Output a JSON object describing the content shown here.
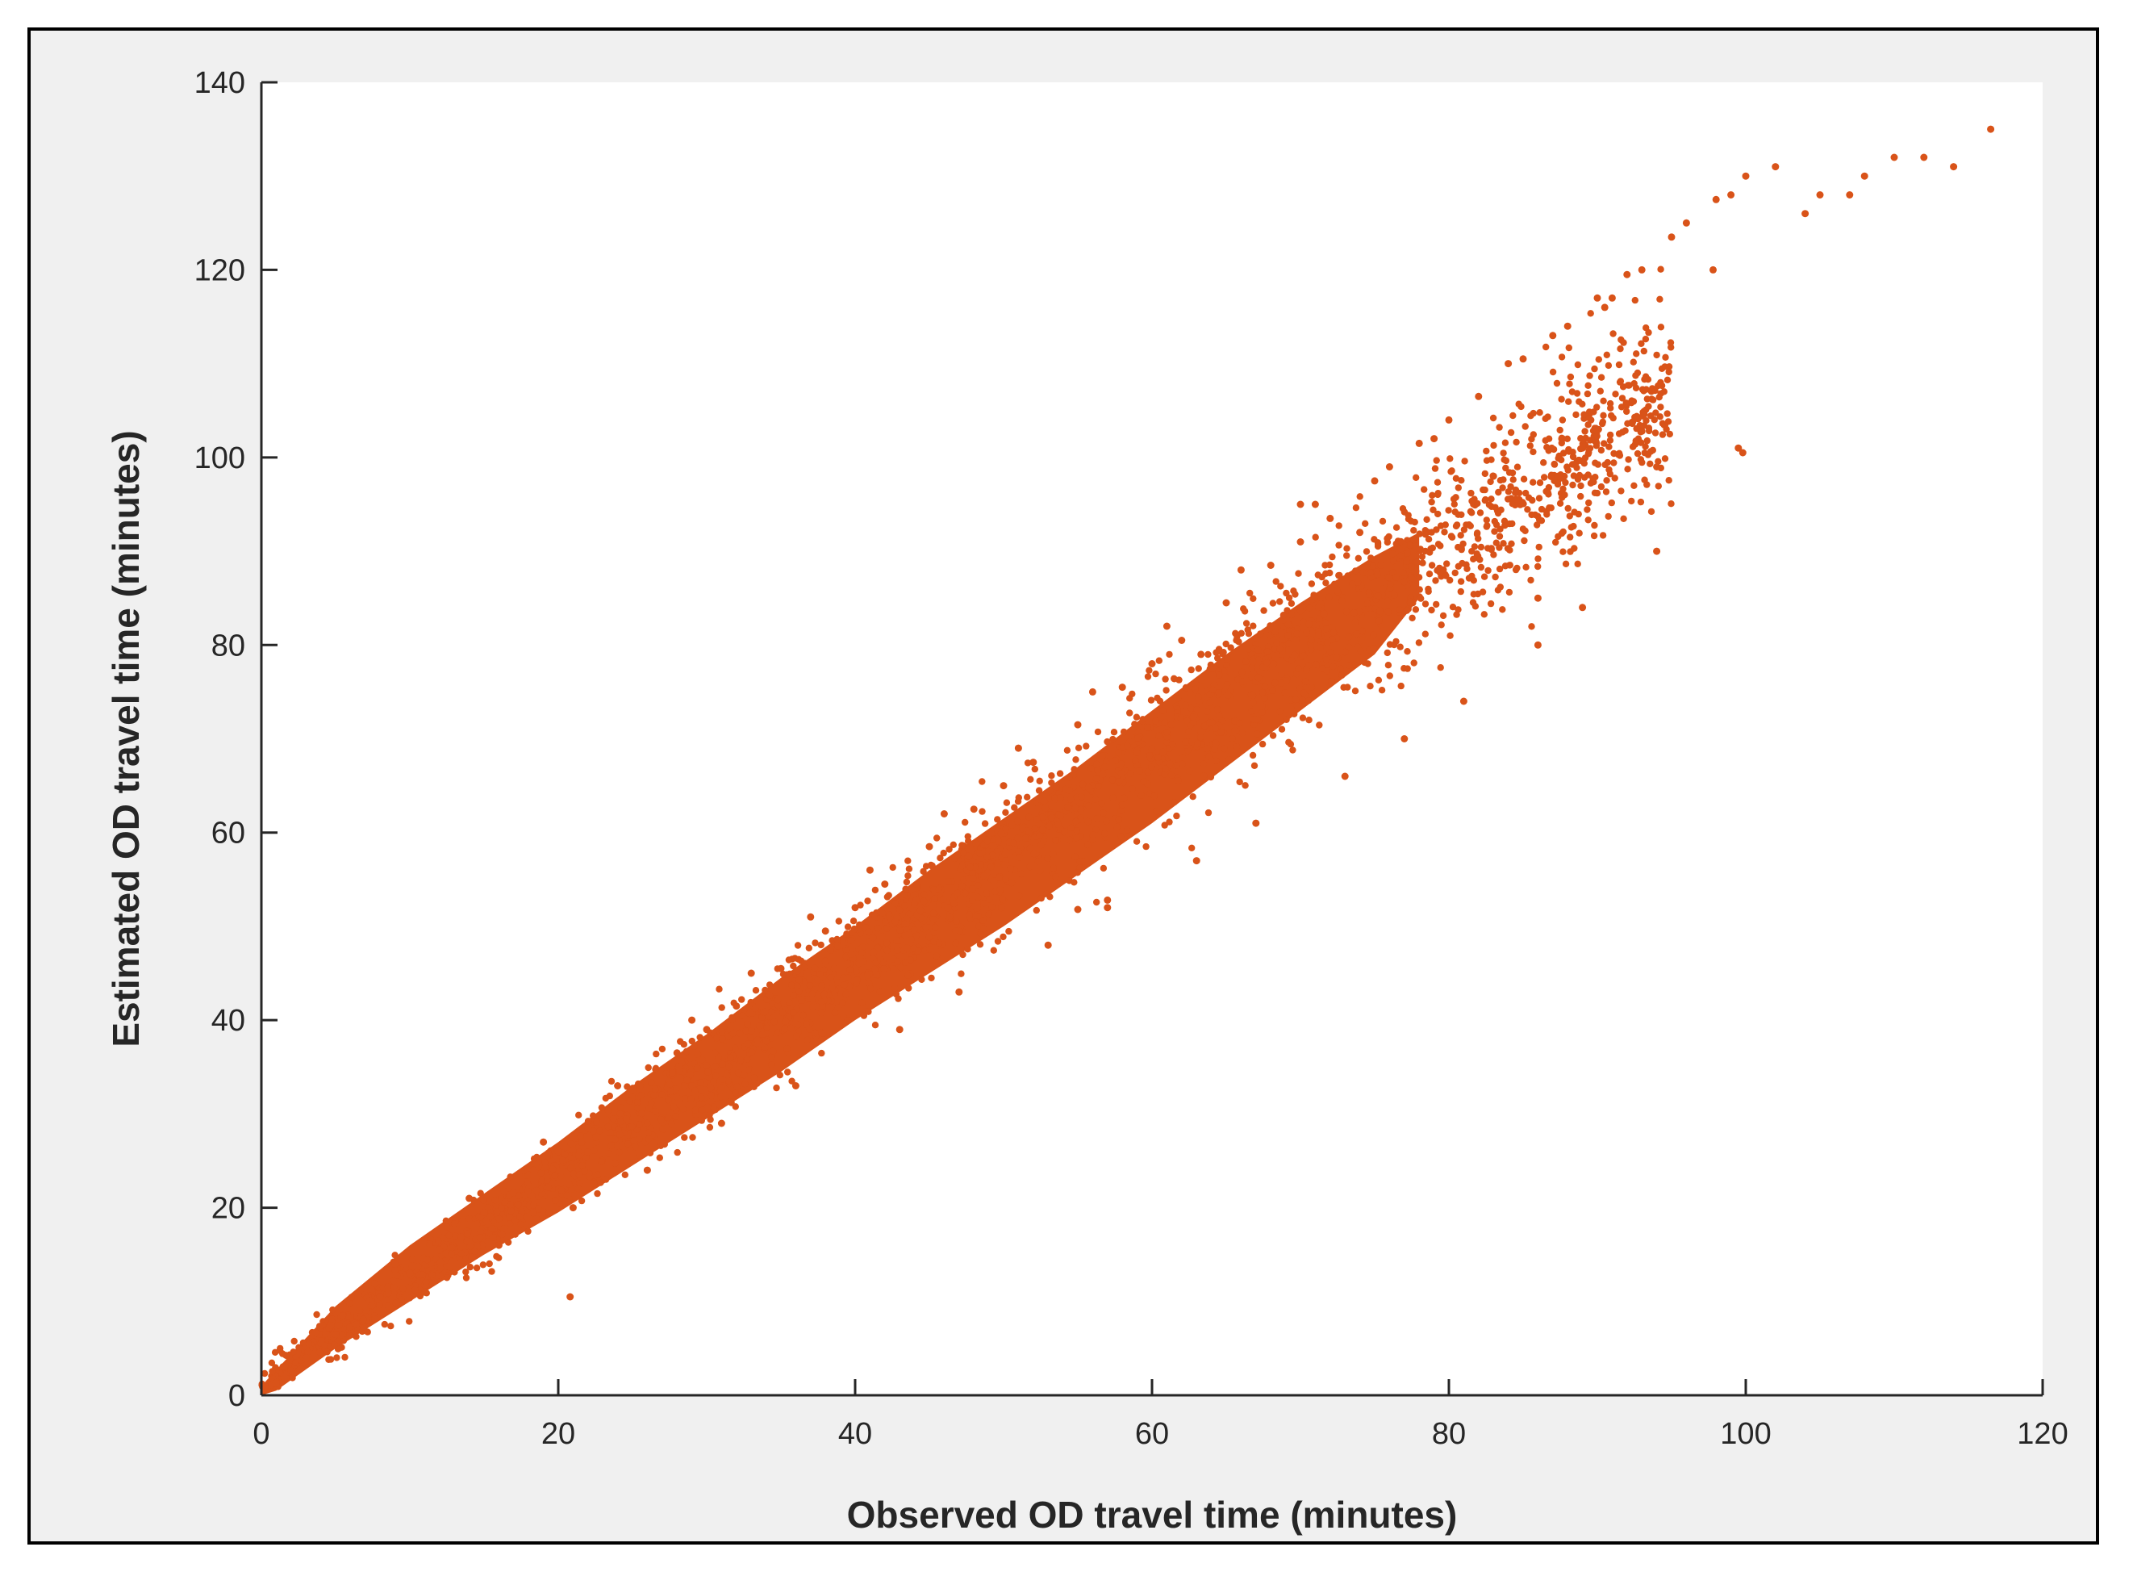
{
  "colors": {
    "marker": "#d95319",
    "axis": "#262626",
    "figure_bg": "#f0f0f0",
    "plot_bg": "#ffffff"
  },
  "chart_data": {
    "type": "scatter",
    "title": "",
    "xlabel": "Observed OD travel time (minutes)",
    "ylabel": "Estimated OD travel time (minutes)",
    "xlim": [
      0,
      120
    ],
    "ylim": [
      0,
      140
    ],
    "xticks": [
      "0",
      "20",
      "40",
      "60",
      "80",
      "100",
      "120"
    ],
    "yticks": [
      "0",
      "20",
      "40",
      "60",
      "80",
      "100",
      "120",
      "140"
    ],
    "grid": false,
    "legend": "none",
    "marker_color": "#d95319",
    "series": [
      {
        "x": [
          1,
          2,
          3,
          5,
          8,
          10,
          12,
          15,
          18,
          20,
          22,
          25,
          28,
          30,
          32,
          35,
          38,
          40,
          42,
          45,
          48,
          50,
          52,
          55,
          58,
          60,
          62,
          65,
          68,
          70,
          72,
          75,
          78,
          80,
          82,
          85,
          88,
          90,
          92,
          95,
          98,
          100,
          102,
          105,
          108,
          110,
          112,
          114,
          116.5,
          9,
          14,
          19,
          24,
          29,
          33,
          37,
          41,
          46,
          51,
          56,
          61,
          66,
          71,
          76,
          79,
          84,
          87,
          91,
          93,
          96,
          99,
          104,
          107,
          11,
          16,
          21,
          26,
          31,
          36,
          43,
          47,
          53,
          57,
          63,
          67,
          73,
          77,
          81,
          86,
          89,
          94,
          20.8,
          55,
          57,
          86,
          94,
          99.5,
          99.8,
          63.3,
          74,
          70,
          83,
          89,
          90.5,
          97.8
        ],
        "y": [
          1.3,
          2.6,
          4,
          6.5,
          10.5,
          13,
          15.5,
          19.5,
          23.5,
          26,
          28.5,
          32.5,
          36.5,
          39,
          41.5,
          45.5,
          49.5,
          52,
          54.5,
          58.5,
          62.5,
          65,
          67.5,
          71.5,
          75.5,
          78,
          80.5,
          84.5,
          88.5,
          91,
          93.5,
          97.5,
          101.5,
          104,
          106.5,
          110.5,
          114,
          117,
          119.5,
          123.5,
          127.5,
          130,
          131,
          128,
          130,
          132,
          132,
          131,
          135,
          14,
          21,
          27,
          33,
          40,
          45,
          51,
          56,
          62,
          69,
          75,
          82,
          88,
          95,
          99,
          102,
          110,
          113,
          117,
          120,
          125,
          128,
          126,
          128,
          11,
          16,
          20,
          24,
          29,
          33,
          39,
          43,
          48,
          52,
          57,
          61,
          66,
          70,
          74,
          80,
          84,
          90,
          10.5,
          51.8,
          52.8,
          85,
          99,
          101,
          100.5,
          79,
          92,
          95,
          98,
          101,
          116,
          120
        ]
      }
    ]
  }
}
